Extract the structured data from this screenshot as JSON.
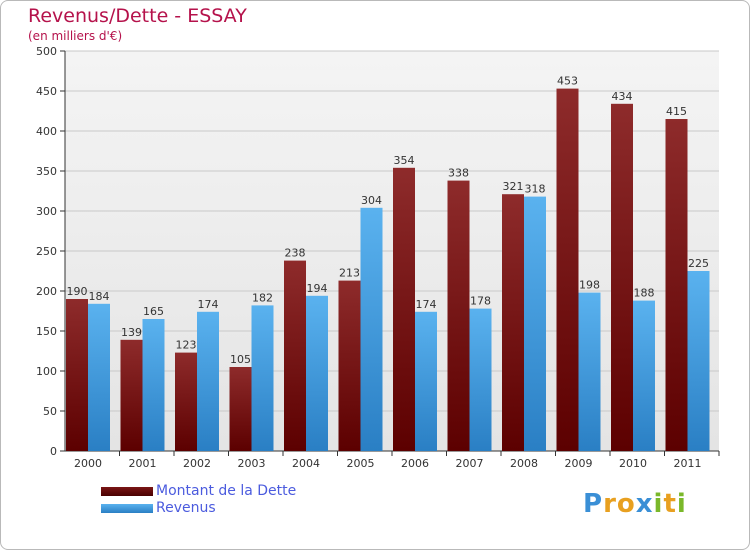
{
  "header": {
    "title": "Revenus/Dette - ESSAY",
    "subtitle": "(en milliers d'€)"
  },
  "legend": {
    "placement": "bottom-left",
    "items": [
      {
        "label": "Montant de la Dette",
        "color": "#7a1515"
      },
      {
        "label": "Revenus",
        "color": "#4aa3e6"
      }
    ]
  },
  "logo": {
    "text": "Proxiti",
    "letters": [
      {
        "ch": "P",
        "color": "#3a8fd6"
      },
      {
        "ch": "r",
        "color": "#e8a020"
      },
      {
        "ch": "o",
        "color": "#e8a020"
      },
      {
        "ch": "x",
        "color": "#3a8fd6"
      },
      {
        "ch": "i",
        "color": "#7ab82a"
      },
      {
        "ch": "t",
        "color": "#e8a020"
      },
      {
        "ch": "i",
        "color": "#7ab82a"
      }
    ]
  },
  "chart_data": {
    "type": "bar",
    "title": "Revenus/Dette - ESSAY",
    "subtitle": "(en milliers d'€)",
    "xlabel": "",
    "ylabel": "",
    "categories": [
      "2000",
      "2001",
      "2002",
      "2003",
      "2004",
      "2005",
      "2006",
      "2007",
      "2008",
      "2009",
      "2010",
      "2011"
    ],
    "series": [
      {
        "name": "Montant de la Dette",
        "color": "#7a1515",
        "values": [
          190,
          139,
          123,
          105,
          238,
          213,
          354,
          338,
          321,
          453,
          434,
          415
        ]
      },
      {
        "name": "Revenus",
        "color": "#4aa3e6",
        "values": [
          184,
          165,
          174,
          182,
          194,
          304,
          174,
          178,
          318,
          198,
          188,
          225
        ]
      }
    ],
    "ylim": [
      0,
      500
    ],
    "yticks": [
      0,
      50,
      100,
      150,
      200,
      250,
      300,
      350,
      400,
      450,
      500
    ],
    "grid": true
  }
}
